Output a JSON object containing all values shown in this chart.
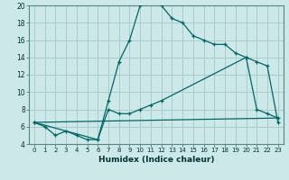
{
  "xlabel": "Humidex (Indice chaleur)",
  "ylabel": "",
  "bg_color": "#cce8e8",
  "grid_color": "#aacccc",
  "line_color": "#006666",
  "xlim": [
    -0.5,
    23.5
  ],
  "ylim": [
    4,
    20
  ],
  "xticks": [
    0,
    1,
    2,
    3,
    4,
    5,
    6,
    7,
    8,
    9,
    10,
    11,
    12,
    13,
    14,
    15,
    16,
    17,
    18,
    19,
    20,
    21,
    22,
    23
  ],
  "yticks": [
    4,
    6,
    8,
    10,
    12,
    14,
    16,
    18,
    20
  ],
  "line1_x": [
    0,
    1,
    2,
    3,
    4,
    5,
    6,
    7,
    8,
    9,
    10,
    11,
    12,
    13,
    14,
    15,
    16,
    17,
    18,
    19,
    20,
    21,
    22,
    23
  ],
  "line1_y": [
    6.5,
    6.0,
    5.0,
    5.5,
    5.0,
    4.5,
    4.5,
    9.0,
    13.5,
    16.0,
    20.0,
    20.5,
    20.0,
    18.5,
    18.0,
    16.5,
    16.0,
    15.5,
    15.5,
    14.5,
    14.0,
    8.0,
    7.5,
    7.0
  ],
  "line2_x": [
    0,
    6,
    7,
    8,
    9,
    10,
    11,
    12,
    20,
    21,
    22,
    23
  ],
  "line2_y": [
    6.5,
    4.5,
    8.0,
    7.5,
    7.5,
    8.0,
    8.5,
    9.0,
    14.0,
    13.5,
    13.0,
    6.5
  ],
  "line3_x": [
    0,
    23
  ],
  "line3_y": [
    6.5,
    7.0
  ]
}
